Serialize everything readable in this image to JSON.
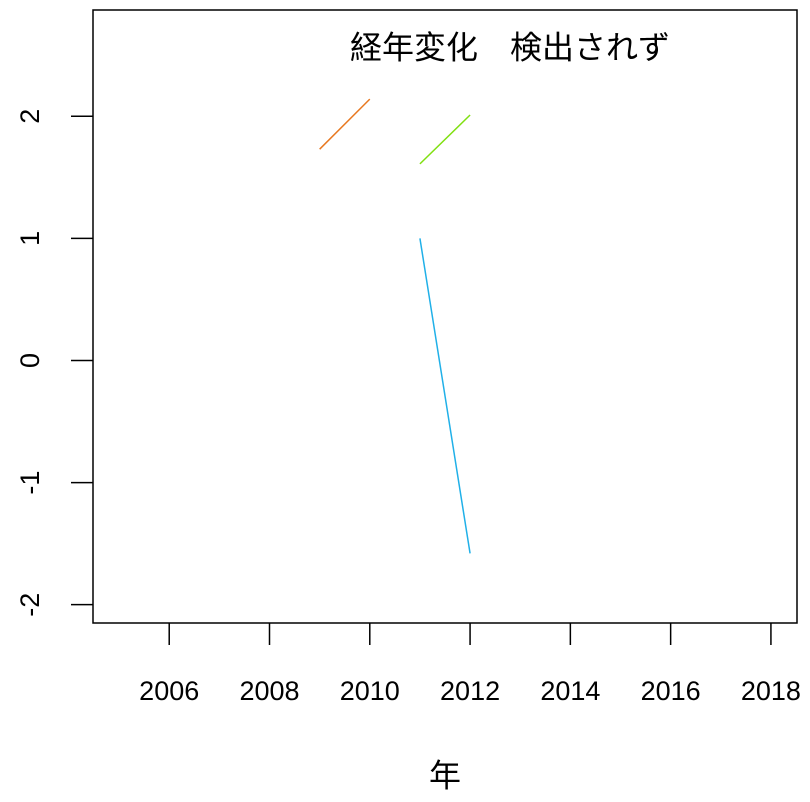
{
  "chart_data": {
    "type": "line",
    "title": "経年変化　検出されず",
    "xlabel": "年",
    "x": [
      2009,
      2010,
      2011,
      2012
    ],
    "series": [
      {
        "color": "#e87820",
        "values": [
          1.73,
          2.14,
          null,
          null
        ]
      },
      {
        "color": "#80e010",
        "values": [
          null,
          null,
          1.61,
          2.01
        ]
      },
      {
        "color": "#20b0e8",
        "values": [
          null,
          null,
          1.0,
          -1.58
        ]
      }
    ],
    "xlim": [
      2004.48,
      2018.52
    ],
    "xticks": [
      2006,
      2008,
      2010,
      2012,
      2014,
      2016,
      2018
    ],
    "ylim": [
      -2.15,
      2.87
    ],
    "yticks": [
      -2,
      -1,
      0,
      1,
      2
    ]
  }
}
